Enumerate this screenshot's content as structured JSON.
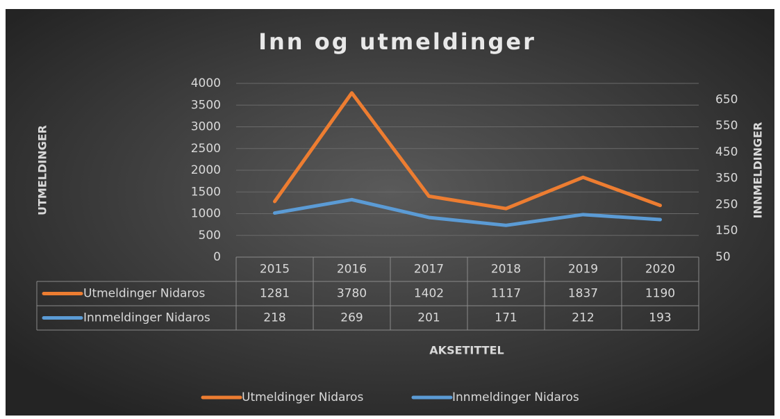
{
  "chart_data": {
    "type": "line",
    "title": "Inn og utmeldinger",
    "xlabel": "AKSETITTEL",
    "ylabel": "UTMELDINGER",
    "y2label": "INNMELDINGER",
    "categories": [
      "2015",
      "2016",
      "2017",
      "2018",
      "2019",
      "2020"
    ],
    "series": [
      {
        "name": "Utmeldinger Nidaros",
        "color": "#ed7d31",
        "values": [
          1281,
          3780,
          1402,
          1117,
          1837,
          1190
        ]
      },
      {
        "name": "Innmeldinger Nidaros",
        "color": "#5b9bd5",
        "axis": "y2",
        "values": [
          218,
          269,
          201,
          171,
          212,
          193
        ]
      }
    ],
    "ylim": [
      0,
      4000
    ],
    "yticks": [
      0,
      500,
      1000,
      1500,
      2000,
      2500,
      3000,
      3500,
      4000
    ],
    "y2lim": [
      50,
      712
    ],
    "y2ticks": [
      50,
      150,
      250,
      350,
      450,
      550,
      650
    ],
    "grid": true,
    "legend": "bottom"
  }
}
